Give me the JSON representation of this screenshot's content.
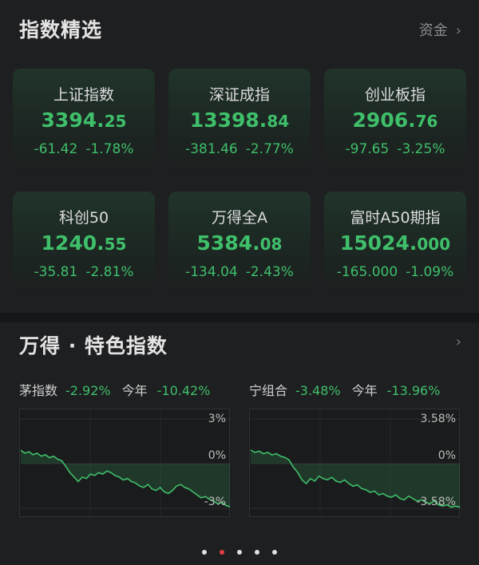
{
  "section1": {
    "title": "指数精选",
    "link_label": "资金"
  },
  "indices": [
    {
      "name": "上证指数",
      "price_int": "3394.",
      "price_dec": "25",
      "change": "-61.42",
      "pct": "-1.78%"
    },
    {
      "name": "深证成指",
      "price_int": "13398.",
      "price_dec": "84",
      "change": "-381.46",
      "pct": "-2.77%"
    },
    {
      "name": "创业板指",
      "price_int": "2906.",
      "price_dec": "76",
      "change": "-97.65",
      "pct": "-3.25%"
    },
    {
      "name": "科创50",
      "price_int": "1240.",
      "price_dec": "55",
      "change": "-35.81",
      "pct": "-2.81%"
    },
    {
      "name": "万得全A",
      "price_int": "5384.",
      "price_dec": "08",
      "change": "-134.04",
      "pct": "-2.43%"
    },
    {
      "name": "富时A50期指",
      "price_int": "15024.",
      "price_dec": "000",
      "change": "-165.000",
      "pct": "-1.09%"
    }
  ],
  "section2": {
    "title": "万得 · 特色指数"
  },
  "charts": [
    {
      "label": "茅指数",
      "day_pct": "-2.92%",
      "ytd_label": "今年",
      "ytd_pct": "-10.42%",
      "axis_top": "3%",
      "axis_mid": "0%",
      "axis_bot": "-3%"
    },
    {
      "label": "宁组合",
      "day_pct": "-3.48%",
      "ytd_label": "今年",
      "ytd_pct": "-13.96%",
      "axis_top": "3.58%",
      "axis_mid": "0%",
      "axis_bot": "-3.58%"
    }
  ],
  "chart_data": [
    {
      "type": "area",
      "ylim": [
        -3,
        3
      ],
      "series": [
        {
          "values": [
            0.9,
            0.7,
            0.8,
            0.6,
            0.7,
            0.5,
            0.6,
            0.4,
            0.5,
            0.3,
            0.2,
            -0.2,
            -0.6,
            -0.9,
            -1.2,
            -0.9,
            -1.0,
            -0.7,
            -0.8,
            -0.6,
            -0.7,
            -0.5,
            -0.6,
            -0.8,
            -0.9,
            -1.1,
            -1.0,
            -1.2,
            -1.3,
            -1.5,
            -1.6,
            -1.4,
            -1.7,
            -1.8,
            -1.6,
            -1.9,
            -2.0,
            -1.8,
            -1.5,
            -1.4,
            -1.6,
            -1.7,
            -1.9,
            -2.1,
            -2.3,
            -2.2,
            -2.4,
            -2.5,
            -2.7,
            -2.6,
            -2.8,
            -2.9
          ]
        }
      ]
    },
    {
      "type": "area",
      "ylim": [
        -3.58,
        3.58
      ],
      "series": [
        {
          "values": [
            1.1,
            0.9,
            1.0,
            0.8,
            0.9,
            0.7,
            0.8,
            0.6,
            0.5,
            0.3,
            -0.3,
            -0.7,
            -1.3,
            -1.6,
            -1.2,
            -1.4,
            -1.0,
            -1.2,
            -1.3,
            -1.1,
            -1.4,
            -1.5,
            -1.3,
            -1.6,
            -1.8,
            -1.7,
            -2.0,
            -2.1,
            -2.3,
            -2.2,
            -2.5,
            -2.4,
            -2.6,
            -2.7,
            -2.5,
            -2.8,
            -2.9,
            -2.6,
            -2.8,
            -3.0,
            -2.9,
            -3.1,
            -3.2,
            -3.0,
            -3.3,
            -3.4,
            -3.3,
            -3.5,
            -3.4,
            -3.5
          ]
        }
      ]
    }
  ],
  "pager": {
    "count": 5,
    "active": 1
  }
}
